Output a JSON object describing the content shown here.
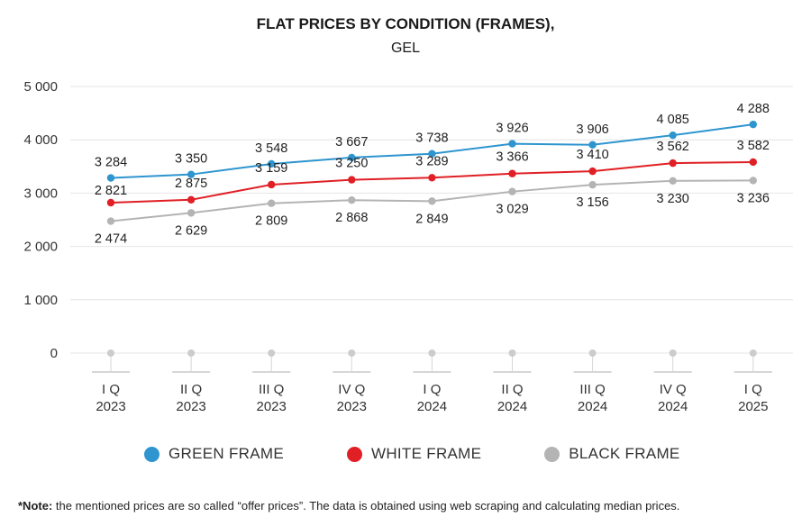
{
  "chart_data": {
    "type": "line",
    "title": "FLAT PRICES BY CONDITION (FRAMES),",
    "subtitle": "GEL",
    "categories": [
      [
        "I Q",
        "2023"
      ],
      [
        "II Q",
        "2023"
      ],
      [
        "III Q",
        "2023"
      ],
      [
        "IV Q",
        "2023"
      ],
      [
        "I Q",
        "2024"
      ],
      [
        "II Q",
        "2024"
      ],
      [
        "III Q",
        "2024"
      ],
      [
        "IV Q",
        "2024"
      ],
      [
        "I Q",
        "2025"
      ]
    ],
    "ylim": [
      0,
      5000
    ],
    "yticks": [
      0,
      1000,
      2000,
      3000,
      4000,
      5000
    ],
    "ytick_labels": [
      "0",
      "1 000",
      "2 000",
      "3 000",
      "4 000",
      "5 000"
    ],
    "grid": true,
    "legend_position": "bottom",
    "series": [
      {
        "name": "GREEN FRAME",
        "color": "#2e95cf",
        "values": [
          3284,
          3350,
          3548,
          3667,
          3738,
          3926,
          3906,
          4085,
          4288
        ],
        "labels": [
          "3 284",
          "3 350",
          "3 548",
          "3 667",
          "3 738",
          "3 926",
          "3 906",
          "4 085",
          "4 288"
        ]
      },
      {
        "name": "WHITE FRAME",
        "color": "#e02025",
        "values": [
          2821,
          2875,
          3159,
          3250,
          3289,
          3366,
          3410,
          3562,
          3582
        ],
        "labels": [
          "2 821",
          "2 875",
          "3 159",
          "3 250",
          "3 289",
          "3 366",
          "3 410",
          "3 562",
          "3 582"
        ]
      },
      {
        "name": "BLACK FRAME",
        "color": "#b4b4b4",
        "values": [
          2474,
          2629,
          2809,
          2868,
          2849,
          3029,
          3156,
          3230,
          3236
        ],
        "labels": [
          "2 474",
          "2 629",
          "2 809",
          "2 868",
          "2 849",
          "3 029",
          "3 156",
          "3 230",
          "3 236"
        ]
      }
    ],
    "baseline_marker_color": "#cccccc"
  },
  "legend": {
    "green": {
      "label": "GREEN FRAME",
      "color": "#2e95cf"
    },
    "white": {
      "label": "WHITE FRAME",
      "color": "#e02025"
    },
    "black": {
      "label": "BLACK FRAME",
      "color": "#b4b4b4"
    }
  },
  "note": {
    "prefix": "*Note:",
    "text": " the mentioned prices are so called “offer prices”. The data is obtained using web scraping and calculating median prices."
  }
}
